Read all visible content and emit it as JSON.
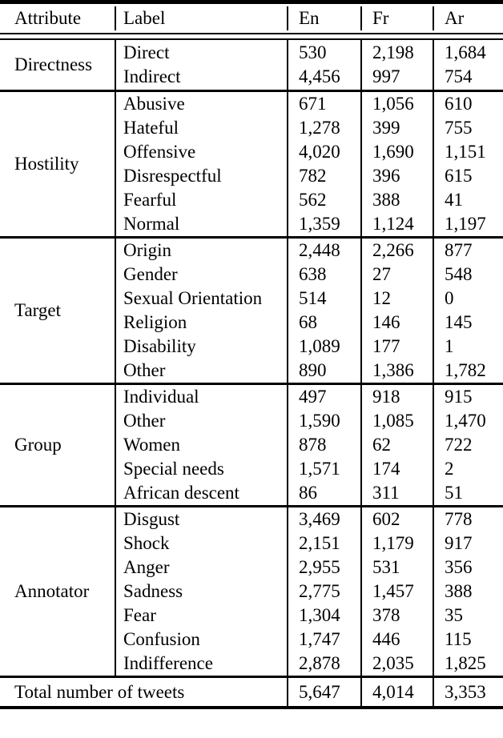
{
  "table": {
    "headers": [
      "Attribute",
      "Label",
      "En",
      "Fr",
      "Ar"
    ],
    "sections": [
      {
        "attribute": "Directness",
        "rows": [
          [
            "Direct",
            "530",
            "2,198",
            "1,684"
          ],
          [
            "Indirect",
            "4,456",
            "997",
            "754"
          ]
        ]
      },
      {
        "attribute": "Hostility",
        "rows": [
          [
            "Abusive",
            "671",
            "1,056",
            "610"
          ],
          [
            "Hateful",
            "1,278",
            "399",
            "755"
          ],
          [
            "Offensive",
            "4,020",
            "1,690",
            "1,151"
          ],
          [
            "Disrespectful",
            "782",
            "396",
            "615"
          ],
          [
            "Fearful",
            "562",
            "388",
            "41"
          ],
          [
            "Normal",
            "1,359",
            "1,124",
            "1,197"
          ]
        ]
      },
      {
        "attribute": "Target",
        "rows": [
          [
            "Origin",
            "2,448",
            "2,266",
            "877"
          ],
          [
            "Gender",
            "638",
            "27",
            "548"
          ],
          [
            "Sexual Orientation",
            "514",
            "12",
            "0"
          ],
          [
            "Religion",
            "68",
            "146",
            "145"
          ],
          [
            "Disability",
            "1,089",
            "177",
            "1"
          ],
          [
            "Other",
            "890",
            "1,386",
            "1,782"
          ]
        ]
      },
      {
        "attribute": "Group",
        "rows": [
          [
            "Individual",
            "497",
            "918",
            "915"
          ],
          [
            "Other",
            "1,590",
            "1,085",
            "1,470"
          ],
          [
            "Women",
            "878",
            "62",
            "722"
          ],
          [
            "Special needs",
            "1,571",
            "174",
            "2"
          ],
          [
            "African descent",
            "86",
            "311",
            "51"
          ]
        ]
      },
      {
        "attribute": "Annotator",
        "rows": [
          [
            "Disgust",
            "3,469",
            "602",
            "778"
          ],
          [
            "Shock",
            "2,151",
            "1,179",
            "917"
          ],
          [
            "Anger",
            "2,955",
            "531",
            "356"
          ],
          [
            "Sadness",
            "2,775",
            "1,457",
            "388"
          ],
          [
            "Fear",
            "1,304",
            "378",
            "35"
          ],
          [
            "Confusion",
            "1,747",
            "446",
            "115"
          ],
          [
            "Indifference",
            "2,878",
            "2,035",
            "1,825"
          ]
        ]
      }
    ],
    "total": {
      "label": "Total number of tweets",
      "values": [
        "5,647",
        "4,014",
        "3,353"
      ]
    }
  }
}
